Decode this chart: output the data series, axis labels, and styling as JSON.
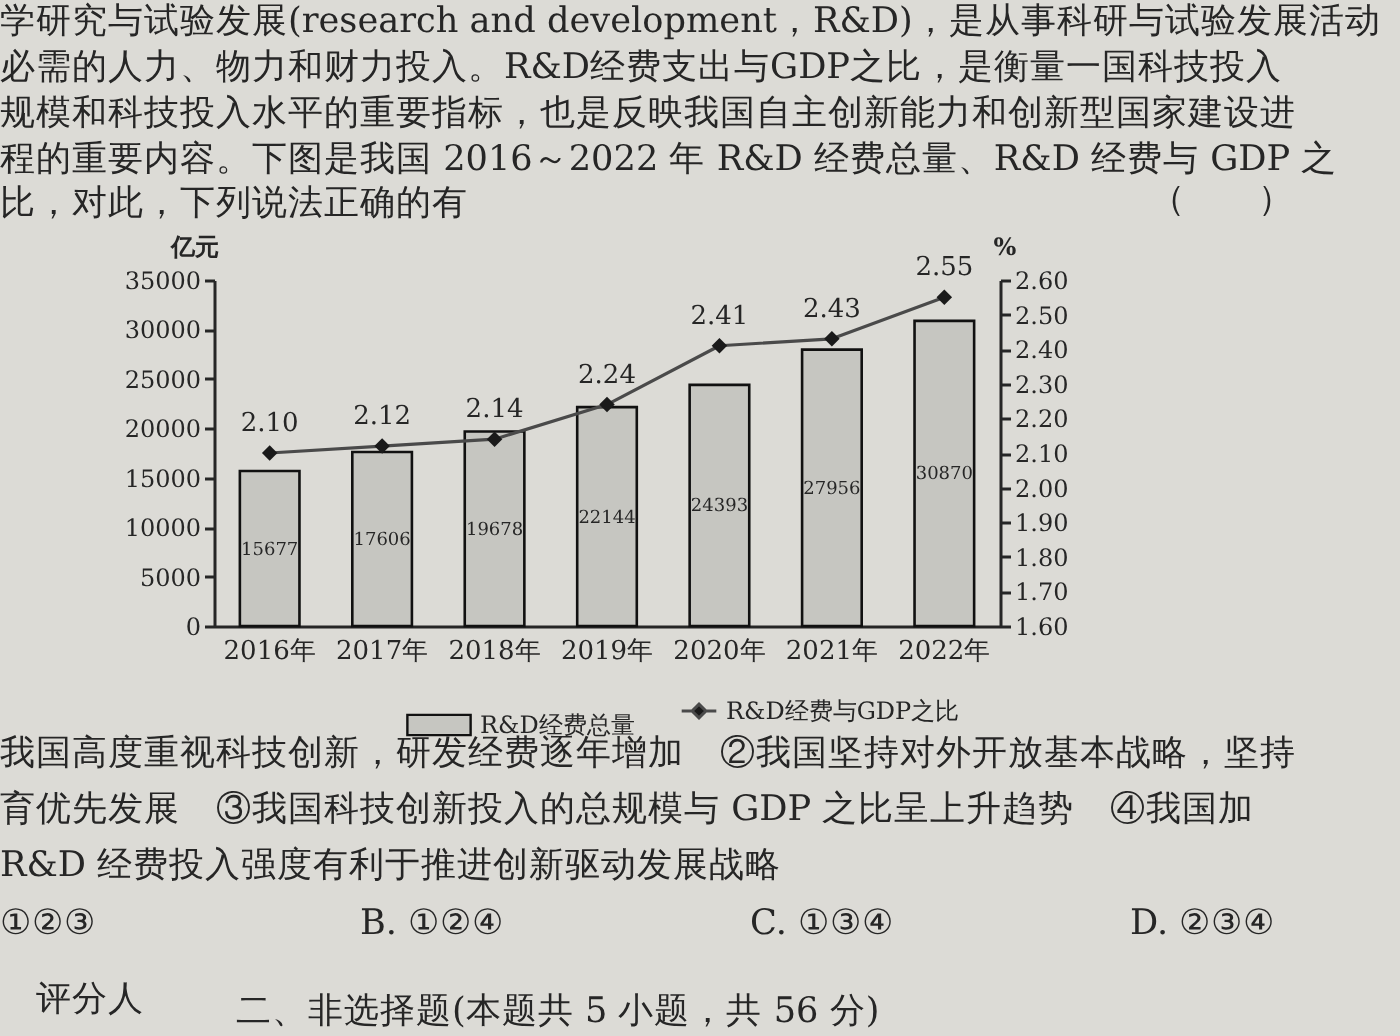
{
  "chart_data": {
    "type": "bar",
    "categories": [
      "2016年",
      "2017年",
      "2018年",
      "2019年",
      "2020年",
      "2021年",
      "2022年"
    ],
    "series": [
      {
        "name": "R&D经费总量",
        "color": "#c6c6c1",
        "values": [
          15677,
          17606,
          19678,
          22144,
          24393,
          27956,
          30870
        ],
        "value_labels": [
          "15677",
          "17606",
          "19678",
          "22144",
          "24393",
          "27956",
          "30870"
        ]
      },
      {
        "name": "R&D经费与GDP之比",
        "type": "line",
        "axis": "y2",
        "color": "#4a4a4a",
        "values": [
          2.1,
          2.12,
          2.14,
          2.24,
          2.41,
          2.43,
          2.55
        ],
        "value_labels": [
          "2.10",
          "2.12",
          "2.14",
          "2.24",
          "2.41",
          "2.43",
          "2.55"
        ]
      }
    ],
    "ylabel": "亿元",
    "y2label": "%",
    "ylim": [
      0,
      35000
    ],
    "yticks": [
      0,
      5000,
      10000,
      15000,
      20000,
      25000,
      30000,
      35000
    ],
    "y2lim": [
      1.6,
      2.6
    ],
    "y2ticks": [
      {
        "value": 1.6,
        "label": "1.60"
      },
      {
        "value": 1.7,
        "label": "1.70"
      },
      {
        "value": 1.8,
        "label": "1.80"
      },
      {
        "value": 1.9,
        "label": "1.90"
      },
      {
        "value": 2.0,
        "label": "2.00"
      },
      {
        "value": 2.1,
        "label": "2.10"
      },
      {
        "value": 2.2,
        "label": "2.20"
      },
      {
        "value": 2.3,
        "label": "2.30"
      },
      {
        "value": 2.4,
        "label": "2.40"
      },
      {
        "value": 2.5,
        "label": "2.50"
      },
      {
        "value": 2.6,
        "label": "2.60"
      }
    ],
    "grid": false,
    "legend": "bottom",
    "marker": "diamond",
    "line_style": "solid",
    "annotations": [
      "学研究与试验发展(research and development，R&D)，是从事科研与试验发展活动",
      "必需的人力、物力和财力投入。R&D经费支出与GDP之比，是衡量一国科技投入",
      "规模和科技投入水平的重要指标，也是反映我国自主创新能力和创新型国家建设进",
      "程的重要内容。下图是我国 2016～2022 年 R&D 经费总量、R&D 经费与 GDP 之",
      "比，对此，下列说法正确的有",
      "（　　）",
      "我国高度重视科技创新，研发经费逐年增加　②我国坚持对外开放基本战略，坚持",
      "育优先发展　③我国科技创新投入的总规模与 GDP 之比呈上升趋势　④我国加",
      "R&D 经费投入强度有利于推进创新驱动发展战略",
      "①②③",
      "B. ①②④",
      "C. ①③④",
      "D. ②③④",
      "评分人",
      "二、非选择题(本题共 5 小题，共 56 分)"
    ]
  }
}
